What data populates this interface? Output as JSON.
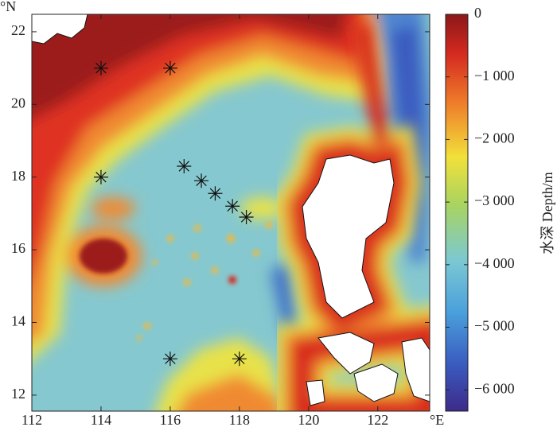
{
  "map": {
    "xlim": [
      112,
      123.5
    ],
    "ylim": [
      11.56,
      22.48
    ],
    "xticks": [
      112,
      114,
      116,
      118,
      120,
      122
    ],
    "yticks": [
      12,
      14,
      16,
      18,
      20,
      22
    ],
    "x_unit": "°E",
    "y_unit": "°N",
    "stations": [
      {
        "lon": 114,
        "lat": 21
      },
      {
        "lon": 116,
        "lat": 21
      },
      {
        "lon": 114,
        "lat": 18
      },
      {
        "lon": 116.4,
        "lat": 18.3
      },
      {
        "lon": 116.9,
        "lat": 17.9
      },
      {
        "lon": 117.3,
        "lat": 17.55
      },
      {
        "lon": 117.8,
        "lat": 17.2
      },
      {
        "lon": 118.2,
        "lat": 16.9
      },
      {
        "lon": 116,
        "lat": 13
      },
      {
        "lon": 118,
        "lat": 13
      }
    ]
  },
  "colorbar": {
    "label": "水深 Depth/m",
    "lim": [
      -6340,
      0
    ],
    "ticks": [
      0,
      {
        "value": -1000,
        "label": "−1 000"
      },
      {
        "value": -2000,
        "label": "−2 000"
      },
      {
        "value": -3000,
        "label": "−3 000"
      },
      {
        "value": -4000,
        "label": "−4 000"
      },
      {
        "value": -5000,
        "label": "−5 000"
      },
      {
        "value": -6000,
        "label": "−6 000"
      }
    ]
  }
}
